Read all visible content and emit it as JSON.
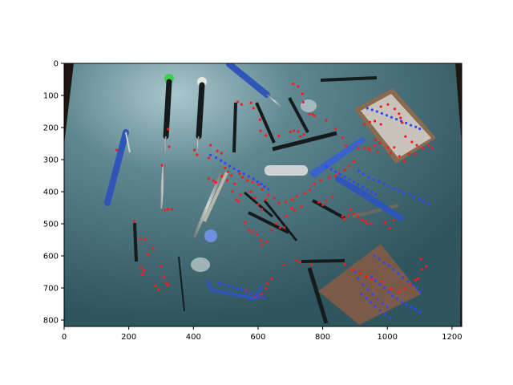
{
  "chart_data": {
    "type": "image",
    "image_content": "photograph of hand tools on a table with detected keypoints overlaid",
    "xlim": [
      0,
      1230
    ],
    "ylim": [
      820,
      0
    ],
    "x_ticks": [
      0,
      200,
      400,
      600,
      800,
      1000,
      1200
    ],
    "y_ticks": [
      0,
      100,
      200,
      300,
      400,
      500,
      600,
      700,
      800
    ],
    "grid": false,
    "colors": {
      "table": "#3f6a74",
      "table_light": "#8fb4bb",
      "background": "#1b1410",
      "tool_blue": "#2f55b8",
      "tool_metal": "#9aa1a3",
      "tool_black": "#151a1c",
      "board": "#7a5a48",
      "point_red": "#ff1a1a",
      "point_blue": "#3344ff"
    },
    "red_points": [
      [
        163,
        270
      ],
      [
        322,
        205
      ],
      [
        325,
        260
      ],
      [
        303,
        318
      ],
      [
        312,
        458
      ],
      [
        321,
        455
      ],
      [
        333,
        455
      ],
      [
        216,
        492
      ],
      [
        403,
        270
      ],
      [
        411,
        285
      ],
      [
        448,
        360
      ],
      [
        462,
        366
      ],
      [
        470,
        371
      ],
      [
        488,
        352
      ],
      [
        505,
        365
      ],
      [
        521,
        399
      ],
      [
        533,
        425
      ],
      [
        540,
        430
      ],
      [
        545,
        410
      ],
      [
        578,
        400
      ],
      [
        590,
        420
      ],
      [
        600,
        440
      ],
      [
        612,
        455
      ],
      [
        624,
        425
      ],
      [
        537,
        120
      ],
      [
        549,
        128
      ],
      [
        578,
        123
      ],
      [
        586,
        140
      ],
      [
        606,
        176
      ],
      [
        608,
        210
      ],
      [
        624,
        225
      ],
      [
        664,
        226
      ],
      [
        700,
        213
      ],
      [
        711,
        210
      ],
      [
        724,
        212
      ],
      [
        731,
        228
      ],
      [
        742,
        222
      ],
      [
        708,
        64
      ],
      [
        724,
        72
      ],
      [
        737,
        95
      ],
      [
        740,
        121
      ],
      [
        759,
        158
      ],
      [
        769,
        159
      ],
      [
        775,
        164
      ],
      [
        811,
        178
      ],
      [
        840,
        205
      ],
      [
        861,
        231
      ],
      [
        872,
        257
      ],
      [
        910,
        264
      ],
      [
        929,
        263
      ],
      [
        943,
        264
      ],
      [
        960,
        256
      ],
      [
        963,
        238
      ],
      [
        977,
        248
      ],
      [
        1002,
        263
      ],
      [
        1021,
        262
      ],
      [
        453,
        255
      ],
      [
        474,
        273
      ],
      [
        487,
        280
      ],
      [
        498,
        326
      ],
      [
        507,
        338
      ],
      [
        517,
        349
      ],
      [
        528,
        375
      ],
      [
        560,
        496
      ],
      [
        571,
        520
      ],
      [
        582,
        524
      ],
      [
        597,
        532
      ],
      [
        608,
        551
      ],
      [
        612,
        567
      ],
      [
        627,
        556
      ],
      [
        641,
        520
      ],
      [
        656,
        499
      ],
      [
        668,
        512
      ],
      [
        681,
        512
      ],
      [
        687,
        476
      ],
      [
        704,
        451
      ],
      [
        713,
        458
      ],
      [
        734,
        447
      ],
      [
        788,
        433
      ],
      [
        800,
        441
      ],
      [
        811,
        428
      ],
      [
        830,
        416
      ],
      [
        861,
        477
      ],
      [
        866,
        485
      ],
      [
        879,
        474
      ],
      [
        886,
        455
      ],
      [
        896,
        469
      ],
      [
        909,
        477
      ],
      [
        921,
        488
      ],
      [
        932,
        491
      ],
      [
        937,
        499
      ],
      [
        950,
        498
      ],
      [
        994,
        496
      ],
      [
        1007,
        514
      ],
      [
        1018,
        488
      ],
      [
        448,
        295
      ],
      [
        251,
        548
      ],
      [
        236,
        548
      ],
      [
        275,
        575
      ],
      [
        260,
        595
      ],
      [
        237,
        636
      ],
      [
        247,
        646
      ],
      [
        242,
        658
      ],
      [
        308,
        666
      ],
      [
        317,
        686
      ],
      [
        300,
        632
      ],
      [
        322,
        692
      ],
      [
        292,
        706
      ],
      [
        282,
        693
      ],
      [
        563,
        708
      ],
      [
        575,
        718
      ],
      [
        592,
        727
      ],
      [
        610,
        720
      ],
      [
        623,
        702
      ],
      [
        629,
        687
      ],
      [
        642,
        671
      ],
      [
        680,
        628
      ],
      [
        719,
        614
      ],
      [
        730,
        620
      ],
      [
        765,
        626
      ],
      [
        868,
        626
      ],
      [
        893,
        644
      ],
      [
        916,
        653
      ],
      [
        935,
        665
      ],
      [
        952,
        673
      ],
      [
        983,
        680
      ],
      [
        1011,
        704
      ],
      [
        1036,
        711
      ],
      [
        1053,
        701
      ],
      [
        1071,
        690
      ],
      [
        1087,
        676
      ],
      [
        1095,
        671
      ],
      [
        1107,
        642
      ],
      [
        1120,
        633
      ],
      [
        1104,
        610
      ],
      [
        929,
        190
      ],
      [
        946,
        183
      ],
      [
        961,
        180
      ],
      [
        980,
        190
      ],
      [
        980,
        135
      ],
      [
        1002,
        128
      ],
      [
        1023,
        142
      ],
      [
        1036,
        157
      ],
      [
        1041,
        170
      ],
      [
        1046,
        185
      ],
      [
        1056,
        228
      ],
      [
        1076,
        245
      ],
      [
        1091,
        255
      ],
      [
        1109,
        265
      ],
      [
        1127,
        255
      ],
      [
        1138,
        264
      ],
      [
        1087,
        282
      ],
      [
        1067,
        283
      ],
      [
        1053,
        305
      ],
      [
        1037,
        290
      ],
      [
        1010,
        280
      ],
      [
        970,
        275
      ],
      [
        945,
        270
      ],
      [
        897,
        306
      ],
      [
        880,
        321
      ],
      [
        868,
        332
      ],
      [
        852,
        343
      ],
      [
        839,
        350
      ],
      [
        820,
        356
      ],
      [
        794,
        365
      ],
      [
        774,
        375
      ],
      [
        760,
        394
      ],
      [
        745,
        405
      ],
      [
        720,
        414
      ],
      [
        706,
        425
      ],
      [
        686,
        432
      ],
      [
        664,
        435
      ],
      [
        650,
        420
      ],
      [
        632,
        410
      ],
      [
        613,
        392
      ],
      [
        602,
        378
      ],
      [
        583,
        370
      ],
      [
        568,
        365
      ],
      [
        552,
        355
      ],
      [
        543,
        344
      ]
    ],
    "blue_points": [
      [
        912,
        335
      ],
      [
        925,
        345
      ],
      [
        943,
        355
      ],
      [
        958,
        362
      ],
      [
        974,
        368
      ],
      [
        990,
        375
      ],
      [
        1004,
        382
      ],
      [
        1020,
        390
      ],
      [
        1037,
        397
      ],
      [
        1050,
        404
      ],
      [
        1069,
        408
      ],
      [
        1082,
        416
      ],
      [
        1099,
        423
      ],
      [
        1112,
        430
      ],
      [
        1128,
        436
      ],
      [
        951,
        665
      ],
      [
        963,
        677
      ],
      [
        977,
        688
      ],
      [
        991,
        700
      ],
      [
        1004,
        712
      ],
      [
        1016,
        725
      ],
      [
        1032,
        733
      ],
      [
        1045,
        744
      ],
      [
        1058,
        752
      ],
      [
        1073,
        760
      ],
      [
        1086,
        766
      ],
      [
        1099,
        775
      ],
      [
        960,
        600
      ],
      [
        975,
        610
      ],
      [
        990,
        622
      ],
      [
        1005,
        630
      ],
      [
        1019,
        643
      ],
      [
        1034,
        655
      ],
      [
        1048,
        667
      ],
      [
        1063,
        680
      ],
      [
        1078,
        690
      ],
      [
        1092,
        700
      ],
      [
        1101,
        712
      ],
      [
        900,
        650
      ],
      [
        910,
        670
      ],
      [
        925,
        690
      ],
      [
        940,
        705
      ],
      [
        955,
        720
      ],
      [
        970,
        735
      ],
      [
        985,
        748
      ],
      [
        1000,
        760
      ],
      [
        920,
        720
      ],
      [
        935,
        732
      ],
      [
        948,
        745
      ],
      [
        963,
        757
      ],
      [
        978,
        770
      ],
      [
        993,
        782
      ],
      [
        1008,
        793
      ],
      [
        480,
        686
      ],
      [
        494,
        690
      ],
      [
        508,
        694
      ],
      [
        522,
        698
      ],
      [
        536,
        702
      ],
      [
        550,
        706
      ],
      [
        564,
        712
      ],
      [
        577,
        718
      ],
      [
        591,
        724
      ],
      [
        605,
        728
      ],
      [
        619,
        732
      ],
      [
        453,
        286
      ],
      [
        470,
        294
      ],
      [
        485,
        303
      ],
      [
        498,
        311
      ],
      [
        512,
        320
      ],
      [
        526,
        328
      ],
      [
        540,
        336
      ],
      [
        556,
        344
      ],
      [
        571,
        352
      ],
      [
        586,
        360
      ],
      [
        598,
        369
      ],
      [
        610,
        376
      ],
      [
        620,
        384
      ],
      [
        632,
        392
      ],
      [
        938,
        140
      ],
      [
        953,
        145
      ],
      [
        968,
        150
      ],
      [
        983,
        156
      ],
      [
        998,
        162
      ],
      [
        1013,
        168
      ],
      [
        1028,
        174
      ],
      [
        1043,
        180
      ],
      [
        1058,
        186
      ],
      [
        1073,
        193
      ],
      [
        1088,
        198
      ],
      [
        1100,
        204
      ],
      [
        812,
        322
      ],
      [
        826,
        330
      ],
      [
        840,
        338
      ],
      [
        854,
        346
      ],
      [
        868,
        354
      ],
      [
        882,
        362
      ],
      [
        896,
        370
      ],
      [
        910,
        378
      ],
      [
        924,
        386
      ],
      [
        938,
        394
      ],
      [
        952,
        401
      ],
      [
        964,
        408
      ]
    ]
  }
}
